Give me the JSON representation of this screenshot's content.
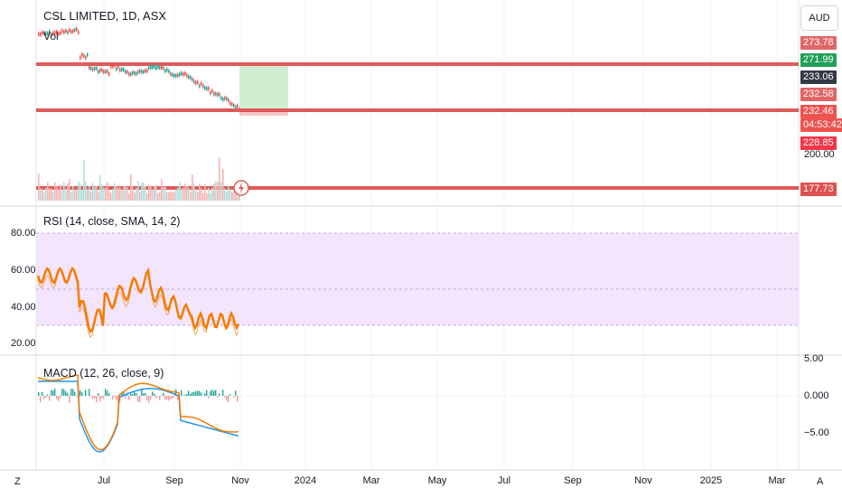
{
  "header": {
    "symbol_title": "CSL LIMITED, 1D, ASX",
    "vol_label": "Vol",
    "currency": "AUD"
  },
  "price_tags": [
    {
      "value": "273.78",
      "color": "#e06666"
    },
    {
      "value": "271.99",
      "color": "#22a05a"
    },
    {
      "value": "233.06",
      "color": "#363a45"
    },
    {
      "value": "232.58",
      "color": "#e06666"
    },
    {
      "value": "232.46",
      "sub": "04:53:42",
      "color": "#ef5350"
    },
    {
      "value": "228.85",
      "color": "#f23645"
    },
    {
      "value": "177.73",
      "color": "#e05050"
    }
  ],
  "price_axis": {
    "label_200": "200.00"
  },
  "rsi": {
    "title": "RSI (14, close, SMA, 14, 2)",
    "axis": [
      "80.00",
      "60.00",
      "40.00",
      "20.00"
    ],
    "band_color": "#f3e5fc"
  },
  "macd": {
    "title": "MACD (12, 26, close, 9)",
    "axis": [
      "5.00",
      "0.000",
      "−5.00"
    ]
  },
  "time_axis": [
    "Jul",
    "Sep",
    "Nov",
    "2024",
    "Mar",
    "May",
    "Jul",
    "Sep",
    "Nov",
    "2025",
    "Mar"
  ],
  "corners": {
    "left": "Z",
    "right": "A"
  },
  "colors": {
    "rsi_line": "#f57c00",
    "rsi_ma": "#f4a261",
    "macd_line": "#2196f3",
    "signal_line": "#f57c00",
    "hline": "#e05a5a",
    "target_box": "#c8ecc8"
  }
}
